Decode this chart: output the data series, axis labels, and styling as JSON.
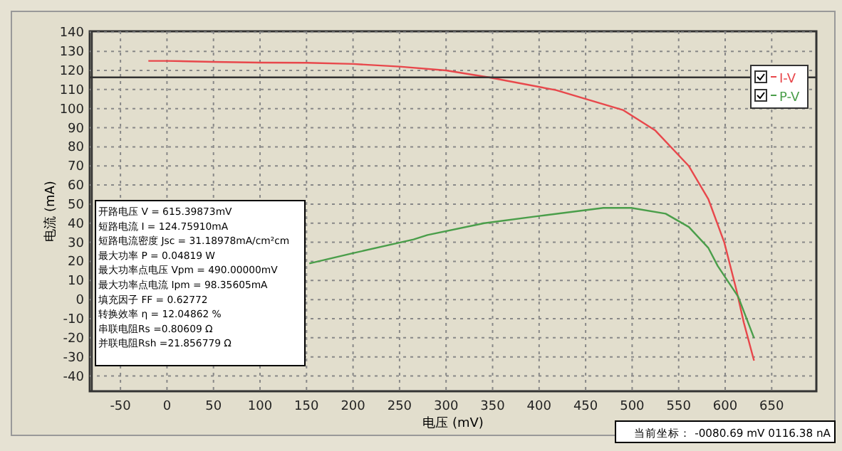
{
  "chart_data": {
    "type": "line",
    "xlabel": "电压 (mV)",
    "ylabel": "电流 (mA)",
    "xlim": [
      -83,
      698
    ],
    "ylim": [
      -48,
      140.5
    ],
    "xticks": [
      -50,
      0,
      50,
      100,
      150,
      200,
      250,
      300,
      350,
      400,
      450,
      500,
      550,
      600,
      650
    ],
    "yticks": [
      -40,
      -30,
      -20,
      -10,
      0,
      10,
      20,
      30,
      40,
      50,
      60,
      70,
      80,
      90,
      100,
      110,
      120,
      130,
      140
    ],
    "grid": true,
    "legend": "top right",
    "marker": "none",
    "line_style": "solid",
    "series": [
      {
        "name": "I-V",
        "color": "#e8474b",
        "x": [
          -20,
          0,
          50,
          100,
          150,
          200,
          250,
          300,
          346,
          418,
          490,
          525,
          561,
          582,
          599,
          612,
          620,
          631
        ],
        "values": [
          125,
          125,
          124.5,
          124.1,
          124,
          123.4,
          122,
          120,
          116.4,
          109.7,
          99.3,
          88.5,
          69.9,
          52.5,
          30,
          5.2,
          -12,
          -32
        ]
      },
      {
        "name": "P-V",
        "color": "#4a9e4a",
        "x": [
          153,
          200,
          265,
          280,
          341,
          400,
          469,
          499,
          536,
          561,
          582,
          592,
          614,
          631
        ],
        "values": [
          18.9,
          24.3,
          31.5,
          33.8,
          40,
          43.8,
          48,
          48,
          45,
          38,
          27,
          17.6,
          1.5,
          -20.1
        ]
      }
    ],
    "ref_lines": [
      {
        "axis": "x",
        "value": -80.69,
        "color": "#333333"
      },
      {
        "axis": "y",
        "value": 116.38,
        "color": "#333333"
      }
    ],
    "annotations": [
      "开路电压 V = 615.39873mV",
      "短路电流 I = 124.75910mA",
      "短路电流密度 Jsc = 31.18978mA/cm²cm",
      "最大功率 P = 0.04819 W",
      "最大功率点电压 Vpm = 490.00000mV",
      "最大功率点电流 Ipm = 98.35605mA",
      "填充因子 FF = 0.62772",
      "转换效率 η = 12.04862 %",
      "串联电阻Rs =0.80609 Ω",
      "并联电阻Rsh =21.856779 Ω",
      "当前坐标：  -0080.69 mV  0116.38 nA"
    ]
  }
}
